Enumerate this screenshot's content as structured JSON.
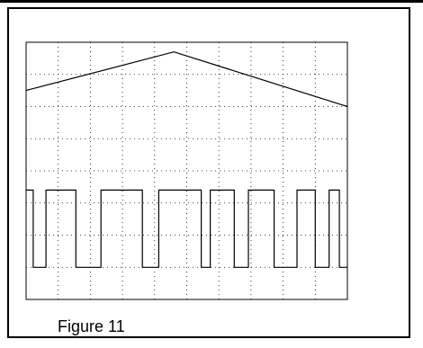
{
  "caption": "Figure 11",
  "chart_data": {
    "type": "line",
    "title": "",
    "xlabel": "",
    "ylabel": "",
    "grid": true,
    "divisions": {
      "x": 10,
      "y": 8
    },
    "xlim": [
      0,
      10
    ],
    "ylim": [
      0,
      8
    ],
    "series": [
      {
        "x": [
          0,
          4.6,
          10
        ],
        "y": [
          6.5,
          7.7,
          6.0
        ]
      },
      {
        "x": [
          0,
          0.22,
          0.22,
          0.62,
          0.62,
          1.55,
          1.55,
          2.33,
          2.33,
          3.62,
          3.62,
          4.13,
          4.13,
          5.45,
          5.45,
          5.73,
          5.73,
          6.48,
          6.48,
          6.92,
          6.92,
          7.72,
          7.72,
          8.43,
          8.43,
          9.0,
          9.0,
          9.43,
          9.43,
          9.75,
          9.75,
          10
        ],
        "y": [
          3.4,
          3.4,
          1.0,
          1.0,
          3.4,
          3.4,
          1.0,
          1.0,
          3.4,
          3.4,
          1.0,
          1.0,
          3.4,
          3.4,
          1.0,
          1.0,
          3.4,
          3.4,
          1.0,
          1.0,
          3.4,
          3.4,
          1.0,
          1.0,
          3.4,
          3.4,
          1.0,
          1.0,
          3.4,
          3.4,
          1.0,
          1.0
        ]
      }
    ]
  }
}
